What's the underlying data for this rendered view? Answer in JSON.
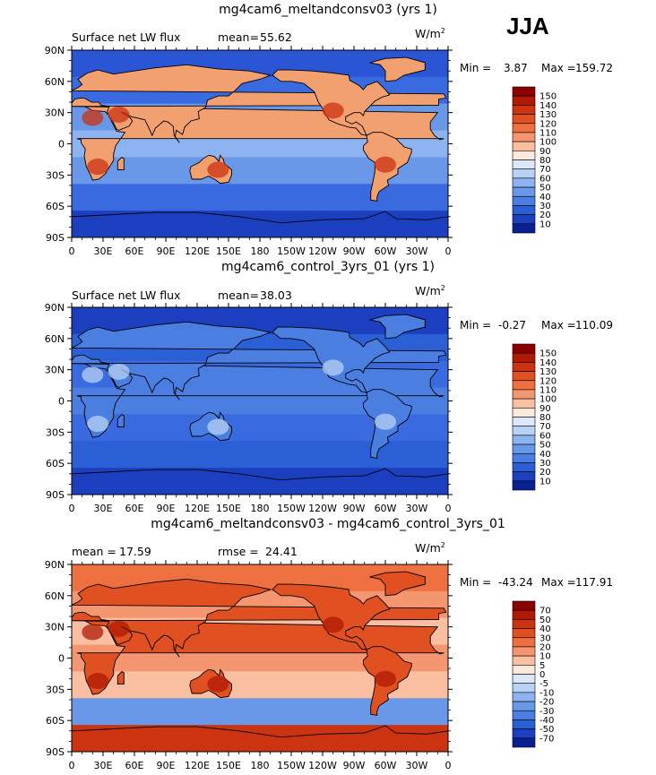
{
  "season": "JJA",
  "units_base": "W/m",
  "units_exp": "2",
  "lat_ticks": [
    "90N",
    "60N",
    "30N",
    "0",
    "30S",
    "60S",
    "90S"
  ],
  "lon_ticks": [
    "0",
    "30E",
    "60E",
    "90E",
    "120E",
    "150E",
    "180",
    "150W",
    "120W",
    "90W",
    "60W",
    "30W",
    "0"
  ],
  "panels": [
    {
      "title": "mg4cam6_meltandconsv03 (yrs 1)",
      "left_label": "Surface net LW flux",
      "stat1_label": "mean=",
      "stat1_value": "55.62",
      "stat2_label": "",
      "stat2_value": "",
      "min_label": "Min =",
      "min_value": "3.87",
      "max_label": "Max =",
      "max_value": "159.72",
      "levels": [
        "150",
        "140",
        "130",
        "120",
        "110",
        "100",
        "90",
        "80",
        "70",
        "60",
        "50",
        "40",
        "30",
        "20",
        "10"
      ],
      "colors": [
        "#8b0000",
        "#b01a04",
        "#cc3311",
        "#e05020",
        "#ee7040",
        "#f49670",
        "#fabfa0",
        "#fde9dc",
        "#dce8fa",
        "#b8d2f6",
        "#8db4f0",
        "#6a98e8",
        "#4a7ee0",
        "#2b5fd6",
        "#1c3fc0",
        "#0a1f90"
      ]
    },
    {
      "title": "mg4cam6_control_3yrs_01 (yrs 1)",
      "left_label": "Surface net LW flux",
      "stat1_label": "mean=",
      "stat1_value": "38.03",
      "stat2_label": "",
      "stat2_value": "",
      "min_label": "Min =",
      "min_value": "-0.27",
      "max_label": "Max =",
      "max_value": "110.09",
      "levels": [
        "150",
        "140",
        "130",
        "120",
        "110",
        "100",
        "90",
        "80",
        "70",
        "60",
        "50",
        "40",
        "30",
        "20",
        "10"
      ],
      "colors": [
        "#8b0000",
        "#b01a04",
        "#cc3311",
        "#e05020",
        "#ee7040",
        "#f49670",
        "#fabfa0",
        "#fde9dc",
        "#dce8fa",
        "#b8d2f6",
        "#8db4f0",
        "#6a98e8",
        "#4a7ee0",
        "#2b5fd6",
        "#1c3fc0",
        "#0a1f90"
      ]
    },
    {
      "title": "mg4cam6_meltandconsv03 - mg4cam6_control_3yrs_01",
      "left_label": "",
      "stat1_label": "mean =",
      "stat1_value": "17.59",
      "stat2_label": "rmse =",
      "stat2_value": "24.41",
      "min_label": "Min =",
      "min_value": "-43.24",
      "max_label": "Max =",
      "max_value": "117.91",
      "levels": [
        "70",
        "50",
        "40",
        "30",
        "20",
        "10",
        "5",
        "0",
        "-5",
        "-10",
        "-20",
        "-30",
        "-40",
        "-50",
        "-70"
      ],
      "colors": [
        "#8b0000",
        "#b01a04",
        "#cc3311",
        "#e05020",
        "#ee7040",
        "#f49670",
        "#fabfa0",
        "#fde9dc",
        "#dce8fa",
        "#b8d2f6",
        "#8db4f0",
        "#6a98e8",
        "#4a7ee0",
        "#2b5fd6",
        "#1c3fc0",
        "#0a1f90"
      ]
    }
  ],
  "chart_data": [
    {
      "type": "heatmap",
      "title": "mg4cam6_meltandconsv03 (yrs 1)",
      "variable": "Surface net LW flux",
      "units": "W/m2",
      "mean": 55.62,
      "min": 3.87,
      "max": 159.72,
      "contour_levels": [
        10,
        20,
        30,
        40,
        50,
        60,
        70,
        80,
        90,
        100,
        110,
        120,
        130,
        140,
        150
      ],
      "xlabel": "",
      "ylabel": "",
      "xlim": [
        0,
        360
      ],
      "ylim": [
        -90,
        90
      ]
    },
    {
      "type": "heatmap",
      "title": "mg4cam6_control_3yrs_01 (yrs 1)",
      "variable": "Surface net LW flux",
      "units": "W/m2",
      "mean": 38.03,
      "min": -0.27,
      "max": 110.09,
      "contour_levels": [
        10,
        20,
        30,
        40,
        50,
        60,
        70,
        80,
        90,
        100,
        110,
        120,
        130,
        140,
        150
      ],
      "xlim": [
        0,
        360
      ],
      "ylim": [
        -90,
        90
      ]
    },
    {
      "type": "heatmap",
      "title": "mg4cam6_meltandconsv03 - mg4cam6_control_3yrs_01",
      "units": "W/m2",
      "mean": 17.59,
      "rmse": 24.41,
      "min": -43.24,
      "max": 117.91,
      "contour_levels": [
        -70,
        -50,
        -40,
        -30,
        -20,
        -10,
        -5,
        0,
        5,
        10,
        20,
        30,
        40,
        50,
        70
      ],
      "xlim": [
        0,
        360
      ],
      "ylim": [
        -90,
        90
      ]
    }
  ]
}
